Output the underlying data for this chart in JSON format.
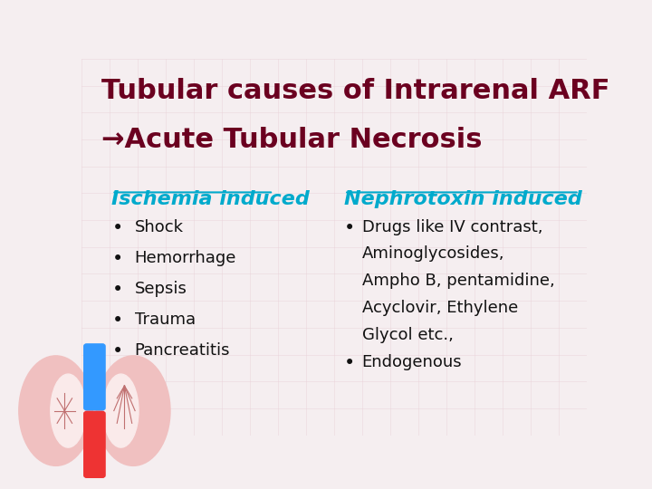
{
  "title_line1": "Tubular causes of Intrarenal ARF",
  "title_line2": "→Acute Tubular Necrosis",
  "title_color": "#6B0020",
  "background_color": "#F5EEF0",
  "left_heading": "Ischemia induced",
  "left_heading_color": "#00AACC",
  "left_items": [
    "Shock",
    "Hemorrhage",
    "Sepsis",
    "Trauma",
    "Pancreatitis"
  ],
  "right_heading": "Nephrotoxin induced",
  "right_heading_color": "#00AACC",
  "right_bullet1_lines": [
    "Drugs like IV contrast,",
    "Aminoglycosides,",
    "Ampho B, pentamidine,",
    "Acyclovir, Ethylene",
    "Glycol etc.,"
  ],
  "right_bullet2": "Endogenous",
  "text_color": "#111111",
  "grid_color": "#E8D0D8",
  "title_fontsize": 22,
  "heading_fontsize": 16,
  "body_fontsize": 13
}
